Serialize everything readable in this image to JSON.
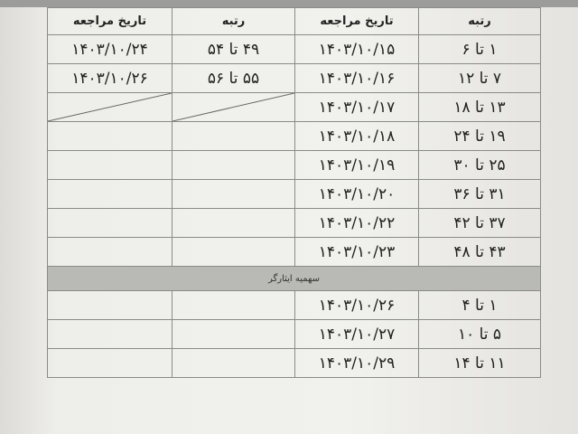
{
  "headers": [
    "رتبه",
    "تاریخ مراجعه",
    "رتبه",
    "تاریخ مراجعه"
  ],
  "rows": [
    {
      "rank1": "۱ تا ۶",
      "date1": "۱۴۰۳/۱۰/۱۵",
      "rank2": "۴۹ تا ۵۴",
      "date2": "۱۴۰۳/۱۰/۲۴"
    },
    {
      "rank1": "۷ تا ۱۲",
      "date1": "۱۴۰۳/۱۰/۱۶",
      "rank2": "۵۵ تا ۵۶",
      "date2": "۱۴۰۳/۱۰/۲۶"
    },
    {
      "rank1": "۱۳ تا ۱۸",
      "date1": "۱۴۰۳/۱۰/۱۷",
      "rank2": "",
      "date2": ""
    },
    {
      "rank1": "۱۹ تا ۲۴",
      "date1": "۱۴۰۳/۱۰/۱۸",
      "rank2": "",
      "date2": ""
    },
    {
      "rank1": "۲۵ تا ۳۰",
      "date1": "۱۴۰۳/۱۰/۱۹",
      "rank2": "",
      "date2": ""
    },
    {
      "rank1": "۳۱ تا ۳۶",
      "date1": "۱۴۰۳/۱۰/۲۰",
      "rank2": "",
      "date2": ""
    },
    {
      "rank1": "۳۷ تا ۴۲",
      "date1": "۱۴۰۳/۱۰/۲۲",
      "rank2": "",
      "date2": ""
    },
    {
      "rank1": "۴۳ تا ۴۸",
      "date1": "۱۴۰۳/۱۰/۲۳",
      "rank2": "",
      "date2": ""
    }
  ],
  "section_title": "سهمیه ایثارگر",
  "section_rows": [
    {
      "rank1": "۱ تا ۴",
      "date1": "۱۴۰۳/۱۰/۲۶"
    },
    {
      "rank1": "۵ تا ۱۰",
      "date1": "۱۴۰۳/۱۰/۲۷"
    },
    {
      "rank1": "۱۱ تا ۱۴",
      "date1": "۱۴۰۳/۱۰/۲۹"
    }
  ]
}
